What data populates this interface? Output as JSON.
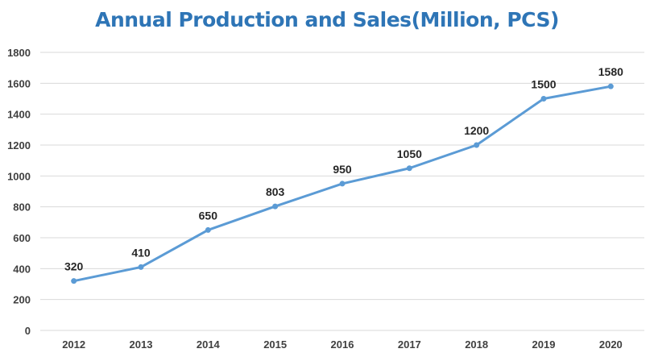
{
  "chart_data": {
    "type": "line",
    "title": "Annual Production and Sales(Million, PCS)",
    "xlabel": "",
    "ylabel": "",
    "categories": [
      "2012",
      "2013",
      "2014",
      "2015",
      "2016",
      "2017",
      "2018",
      "2019",
      "2020"
    ],
    "series": [
      {
        "values": [
          320,
          410,
          650,
          803,
          950,
          1050,
          1200,
          1500,
          1580
        ],
        "color": "#5B9BD5"
      }
    ],
    "data_labels": [
      "320",
      "410",
      "650",
      "803",
      "950",
      "1050",
      "1200",
      "1500",
      "1580"
    ],
    "ylim": [
      0,
      1800
    ],
    "yticks": [
      0,
      200,
      400,
      600,
      800,
      1000,
      1200,
      1400,
      1600,
      1800
    ],
    "grid": true,
    "legend": "none",
    "title_color": "#2E75B6"
  }
}
